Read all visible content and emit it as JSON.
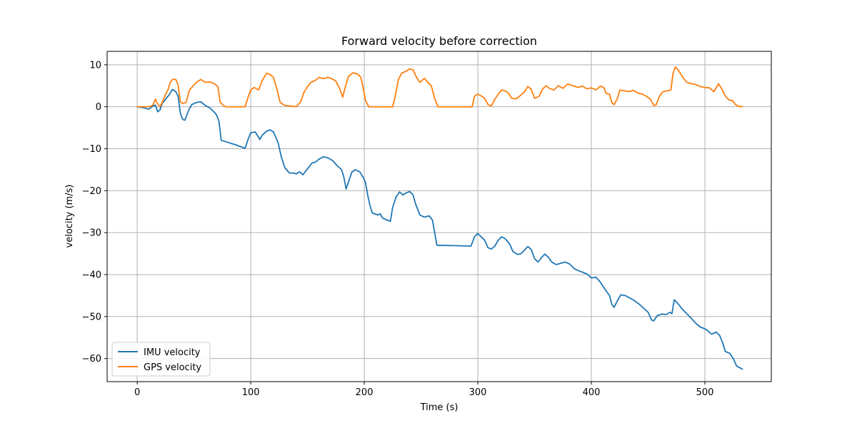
{
  "chart_data": {
    "type": "line",
    "title": "Forward velocity before correction",
    "xlabel": "Time (s)",
    "ylabel": "velocity (m/s)",
    "xlim": [
      -26.5,
      558.5
    ],
    "ylim": [
      -65.5,
      13.2
    ],
    "xticks": [
      0,
      100,
      200,
      300,
      400,
      500
    ],
    "yticks": [
      10,
      0,
      -10,
      -20,
      -30,
      -40,
      -50,
      -60
    ],
    "grid": true,
    "legend_position": "lower-left",
    "series": [
      {
        "name": "IMU velocity",
        "color": "#1f77b4",
        "points": [
          [
            0,
            0
          ],
          [
            5,
            -0.2
          ],
          [
            10,
            -0.6
          ],
          [
            14,
            0.2
          ],
          [
            16,
            0.4
          ],
          [
            18,
            -1.2
          ],
          [
            20,
            -0.8
          ],
          [
            22,
            0.8
          ],
          [
            25,
            1.8
          ],
          [
            28,
            2.8
          ],
          [
            31,
            4.1
          ],
          [
            34,
            3.6
          ],
          [
            36,
            2.5
          ],
          [
            38,
            -1.5
          ],
          [
            40,
            -3.0
          ],
          [
            42,
            -3.2
          ],
          [
            45,
            -1.0
          ],
          [
            48,
            0.5
          ],
          [
            52,
            1.0
          ],
          [
            56,
            1.2
          ],
          [
            60,
            0.3
          ],
          [
            64,
            -0.3
          ],
          [
            68,
            -1.3
          ],
          [
            70,
            -2.0
          ],
          [
            72,
            -3.5
          ],
          [
            74,
            -8.0
          ],
          [
            80,
            -8.5
          ],
          [
            86,
            -9.0
          ],
          [
            92,
            -9.6
          ],
          [
            95,
            -9.9
          ],
          [
            98,
            -7.5
          ],
          [
            100,
            -6.2
          ],
          [
            104,
            -6.0
          ],
          [
            108,
            -7.8
          ],
          [
            110,
            -6.8
          ],
          [
            114,
            -5.8
          ],
          [
            117,
            -5.5
          ],
          [
            120,
            -6.0
          ],
          [
            124,
            -8.5
          ],
          [
            127,
            -12.0
          ],
          [
            130,
            -14.5
          ],
          [
            134,
            -15.8
          ],
          [
            138,
            -15.8
          ],
          [
            140,
            -16.0
          ],
          [
            143,
            -15.5
          ],
          [
            146,
            -16.2
          ],
          [
            150,
            -14.8
          ],
          [
            154,
            -13.4
          ],
          [
            157,
            -13.2
          ],
          [
            160,
            -12.5
          ],
          [
            164,
            -11.9
          ],
          [
            168,
            -12.2
          ],
          [
            172,
            -12.8
          ],
          [
            176,
            -14.0
          ],
          [
            180,
            -15.0
          ],
          [
            182,
            -16.8
          ],
          [
            184,
            -19.6
          ],
          [
            186,
            -18.0
          ],
          [
            189,
            -15.6
          ],
          [
            192,
            -15.0
          ],
          [
            196,
            -15.5
          ],
          [
            199,
            -16.8
          ],
          [
            201,
            -18.0
          ],
          [
            203,
            -21.0
          ],
          [
            205,
            -23.5
          ],
          [
            207,
            -25.3
          ],
          [
            212,
            -25.8
          ],
          [
            214,
            -25.5
          ],
          [
            216,
            -26.5
          ],
          [
            220,
            -27.0
          ],
          [
            223,
            -27.3
          ],
          [
            225,
            -24.0
          ],
          [
            228,
            -21.5
          ],
          [
            231,
            -20.3
          ],
          [
            234,
            -21.0
          ],
          [
            237,
            -20.5
          ],
          [
            240,
            -20.2
          ],
          [
            243,
            -21.0
          ],
          [
            245,
            -23.0
          ],
          [
            249,
            -25.8
          ],
          [
            253,
            -26.3
          ],
          [
            257,
            -26.0
          ],
          [
            260,
            -27.0
          ],
          [
            262,
            -30.0
          ],
          [
            264,
            -33.0
          ],
          [
            280,
            -33.1
          ],
          [
            294,
            -33.2
          ],
          [
            297,
            -31.0
          ],
          [
            300,
            -30.2
          ],
          [
            303,
            -31.0
          ],
          [
            306,
            -31.8
          ],
          [
            309,
            -33.6
          ],
          [
            312,
            -33.9
          ],
          [
            315,
            -33.2
          ],
          [
            318,
            -31.8
          ],
          [
            321,
            -31.0
          ],
          [
            324,
            -31.4
          ],
          [
            328,
            -32.7
          ],
          [
            331,
            -34.5
          ],
          [
            335,
            -35.2
          ],
          [
            338,
            -35.0
          ],
          [
            341,
            -34.2
          ],
          [
            344,
            -33.3
          ],
          [
            347,
            -34.0
          ],
          [
            350,
            -36.2
          ],
          [
            353,
            -37.0
          ],
          [
            356,
            -36.0
          ],
          [
            359,
            -35.1
          ],
          [
            362,
            -35.8
          ],
          [
            365,
            -37.0
          ],
          [
            369,
            -37.6
          ],
          [
            373,
            -37.3
          ],
          [
            377,
            -37.0
          ],
          [
            381,
            -37.5
          ],
          [
            385,
            -38.6
          ],
          [
            389,
            -39.1
          ],
          [
            393,
            -39.5
          ],
          [
            397,
            -40.0
          ],
          [
            400,
            -40.8
          ],
          [
            404,
            -40.6
          ],
          [
            408,
            -41.8
          ],
          [
            412,
            -43.5
          ],
          [
            416,
            -45.0
          ],
          [
            418,
            -47.0
          ],
          [
            420,
            -47.8
          ],
          [
            423,
            -46.2
          ],
          [
            426,
            -44.8
          ],
          [
            430,
            -45.0
          ],
          [
            434,
            -45.6
          ],
          [
            438,
            -46.2
          ],
          [
            442,
            -47.0
          ],
          [
            446,
            -48.0
          ],
          [
            450,
            -49.0
          ],
          [
            453,
            -50.8
          ],
          [
            455,
            -51.0
          ],
          [
            458,
            -49.8
          ],
          [
            462,
            -49.4
          ],
          [
            466,
            -49.5
          ],
          [
            469,
            -49.0
          ],
          [
            471,
            -49.3
          ],
          [
            473,
            -46.0
          ],
          [
            476,
            -46.8
          ],
          [
            480,
            -48.2
          ],
          [
            484,
            -49.3
          ],
          [
            488,
            -50.4
          ],
          [
            492,
            -51.6
          ],
          [
            496,
            -52.5
          ],
          [
            500,
            -52.9
          ],
          [
            503,
            -53.5
          ],
          [
            506,
            -54.2
          ],
          [
            510,
            -53.7
          ],
          [
            513,
            -54.5
          ],
          [
            516,
            -56.5
          ],
          [
            518,
            -58.3
          ],
          [
            522,
            -58.8
          ],
          [
            525,
            -60.0
          ],
          [
            528,
            -61.8
          ],
          [
            533,
            -62.5
          ]
        ]
      },
      {
        "name": "GPS velocity",
        "color": "#ff7f0e",
        "points": [
          [
            0,
            0
          ],
          [
            8,
            0
          ],
          [
            12,
            0.1
          ],
          [
            14,
            0.5
          ],
          [
            16,
            1.8
          ],
          [
            18,
            0.7
          ],
          [
            20,
            0
          ],
          [
            22,
            1.0
          ],
          [
            25,
            3.0
          ],
          [
            27,
            4.0
          ],
          [
            29,
            5.7
          ],
          [
            31,
            6.5
          ],
          [
            34,
            6.5
          ],
          [
            36,
            5.2
          ],
          [
            38,
            1.2
          ],
          [
            40,
            0.8
          ],
          [
            43,
            1.0
          ],
          [
            46,
            4.0
          ],
          [
            50,
            5.2
          ],
          [
            53,
            6.0
          ],
          [
            56,
            6.5
          ],
          [
            60,
            5.8
          ],
          [
            64,
            5.9
          ],
          [
            68,
            5.5
          ],
          [
            71,
            4.8
          ],
          [
            73,
            1.2
          ],
          [
            75,
            0.5
          ],
          [
            78,
            0
          ],
          [
            95,
            0
          ],
          [
            98,
            2.5
          ],
          [
            100,
            4.0
          ],
          [
            103,
            4.6
          ],
          [
            107,
            4.0
          ],
          [
            110,
            6.2
          ],
          [
            114,
            8.0
          ],
          [
            117,
            7.7
          ],
          [
            120,
            7.0
          ],
          [
            123,
            4.2
          ],
          [
            126,
            1.0
          ],
          [
            130,
            0.3
          ],
          [
            135,
            0.2
          ],
          [
            140,
            0
          ],
          [
            144,
            1.2
          ],
          [
            147,
            3.5
          ],
          [
            150,
            4.8
          ],
          [
            153,
            5.8
          ],
          [
            157,
            6.3
          ],
          [
            160,
            7.0
          ],
          [
            164,
            6.7
          ],
          [
            168,
            7.0
          ],
          [
            172,
            6.6
          ],
          [
            175,
            6.1
          ],
          [
            178,
            4.5
          ],
          [
            181,
            2.3
          ],
          [
            183,
            4.5
          ],
          [
            186,
            7.2
          ],
          [
            190,
            8.1
          ],
          [
            194,
            7.8
          ],
          [
            197,
            7.0
          ],
          [
            199,
            4.5
          ],
          [
            201,
            1.5
          ],
          [
            204,
            0
          ],
          [
            225,
            0
          ],
          [
            227,
            2.2
          ],
          [
            230,
            6.5
          ],
          [
            233,
            8.0
          ],
          [
            237,
            8.5
          ],
          [
            240,
            9.0
          ],
          [
            243,
            8.8
          ],
          [
            246,
            7.0
          ],
          [
            249,
            5.8
          ],
          [
            253,
            6.8
          ],
          [
            256,
            5.8
          ],
          [
            259,
            5.0
          ],
          [
            262,
            2.0
          ],
          [
            265,
            0
          ],
          [
            295,
            0
          ],
          [
            297,
            2.5
          ],
          [
            300,
            3.0
          ],
          [
            303,
            2.6
          ],
          [
            306,
            2.0
          ],
          [
            309,
            0.5
          ],
          [
            312,
            0.2
          ],
          [
            315,
            1.8
          ],
          [
            318,
            3.0
          ],
          [
            321,
            4.0
          ],
          [
            324,
            3.8
          ],
          [
            327,
            3.2
          ],
          [
            330,
            2.0
          ],
          [
            334,
            1.9
          ],
          [
            338,
            2.8
          ],
          [
            341,
            3.5
          ],
          [
            344,
            4.8
          ],
          [
            347,
            4.2
          ],
          [
            350,
            2.0
          ],
          [
            354,
            2.5
          ],
          [
            357,
            4.2
          ],
          [
            360,
            5.0
          ],
          [
            363,
            4.4
          ],
          [
            367,
            4.0
          ],
          [
            371,
            5.0
          ],
          [
            375,
            4.4
          ],
          [
            379,
            5.4
          ],
          [
            384,
            5.0
          ],
          [
            388,
            4.6
          ],
          [
            392,
            4.9
          ],
          [
            396,
            4.3
          ],
          [
            400,
            4.5
          ],
          [
            404,
            4.0
          ],
          [
            408,
            4.9
          ],
          [
            411,
            4.6
          ],
          [
            413,
            3.2
          ],
          [
            416,
            3.0
          ],
          [
            418,
            1.0
          ],
          [
            420,
            0.5
          ],
          [
            423,
            2.0
          ],
          [
            425,
            4.0
          ],
          [
            429,
            3.8
          ],
          [
            433,
            3.6
          ],
          [
            437,
            3.9
          ],
          [
            441,
            3.3
          ],
          [
            445,
            3.0
          ],
          [
            449,
            2.4
          ],
          [
            452,
            1.8
          ],
          [
            455,
            0.3
          ],
          [
            457,
            0.4
          ],
          [
            460,
            2.5
          ],
          [
            463,
            3.6
          ],
          [
            467,
            3.8
          ],
          [
            470,
            4.0
          ],
          [
            472,
            8.0
          ],
          [
            474,
            9.5
          ],
          [
            477,
            8.6
          ],
          [
            480,
            7.2
          ],
          [
            484,
            5.8
          ],
          [
            488,
            5.5
          ],
          [
            492,
            5.3
          ],
          [
            496,
            4.8
          ],
          [
            500,
            4.6
          ],
          [
            504,
            4.5
          ],
          [
            508,
            3.6
          ],
          [
            512,
            5.5
          ],
          [
            515,
            4.2
          ],
          [
            518,
            2.6
          ],
          [
            521,
            1.6
          ],
          [
            524,
            1.5
          ],
          [
            527,
            0.5
          ],
          [
            530,
            0.1
          ],
          [
            533,
            0
          ]
        ]
      }
    ]
  }
}
